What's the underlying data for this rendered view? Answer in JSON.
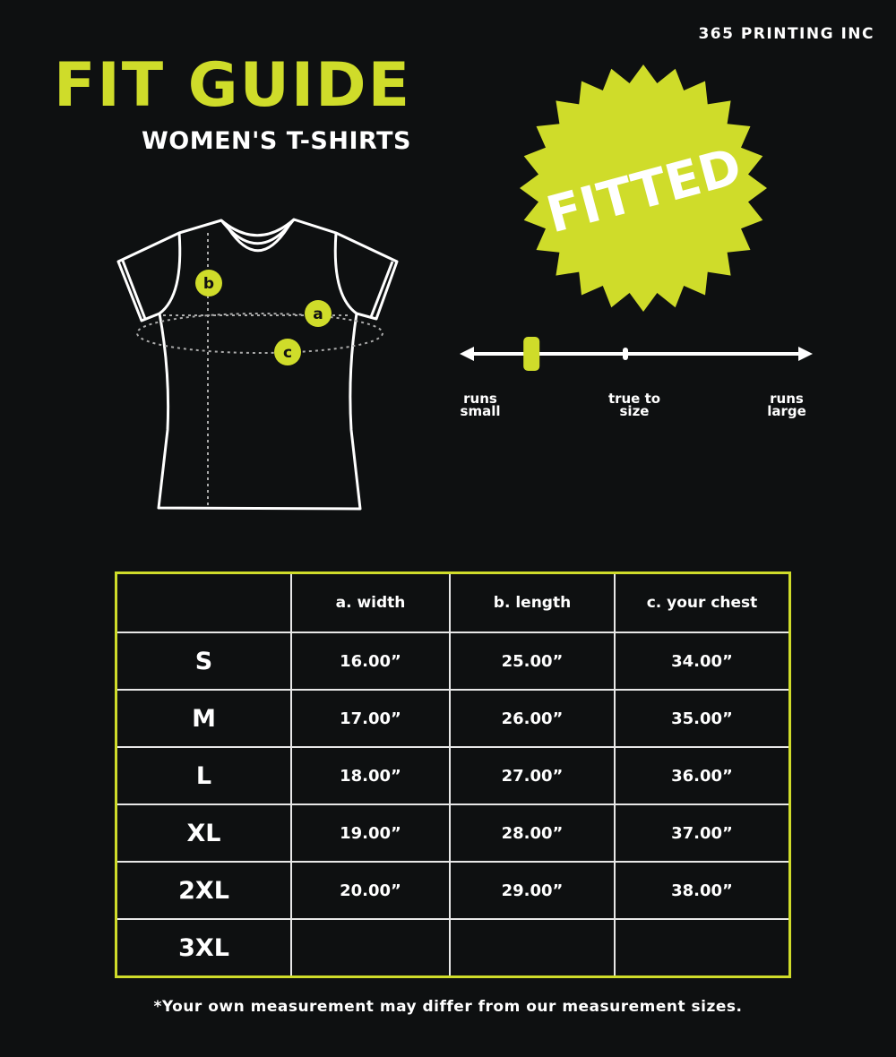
{
  "brand": "365 PRINTING INC",
  "header": {
    "title": "FIT GUIDE",
    "subtitle": "WOMEN'S T-SHIRTS"
  },
  "colors": {
    "accent": "#cfdc2a",
    "background": "#0e1011",
    "line": "#ffffff"
  },
  "badge": {
    "label": "FITTED",
    "shape": "starburst"
  },
  "diagram": {
    "markers": [
      "a",
      "b",
      "c"
    ]
  },
  "fit_scale": {
    "labels": {
      "small": "runs small",
      "true": "true to size",
      "large": "runs large"
    },
    "position_fraction": 0.18
  },
  "size_table": {
    "headers": [
      "",
      "a. width",
      "b. length",
      "c. your chest"
    ],
    "rows": [
      {
        "size": "S",
        "width": "16.00”",
        "length": "25.00”",
        "chest": "34.00”"
      },
      {
        "size": "M",
        "width": "17.00”",
        "length": "26.00”",
        "chest": "35.00”"
      },
      {
        "size": "L",
        "width": "18.00”",
        "length": "27.00”",
        "chest": "36.00”"
      },
      {
        "size": "XL",
        "width": "19.00”",
        "length": "28.00”",
        "chest": "37.00”"
      },
      {
        "size": "2XL",
        "width": "20.00”",
        "length": "29.00”",
        "chest": "38.00”"
      },
      {
        "size": "3XL",
        "width": "",
        "length": "",
        "chest": ""
      }
    ]
  },
  "footnote": "*Your own measurement may differ from our measurement sizes."
}
